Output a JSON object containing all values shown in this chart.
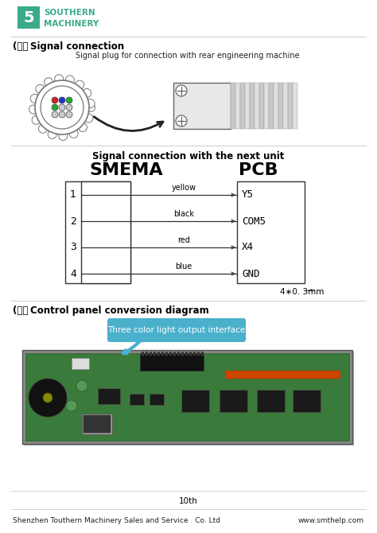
{
  "bg_color": "#ffffff",
  "logo_text1": "SOUTHERN",
  "logo_text2": "MACHINERY",
  "logo_color": "#3aaa8a",
  "section2_label": "(二）Signal connection",
  "section2_subtitle": "Signal plug for connection with rear engineering machine",
  "signal_title": "Signal connection with the next unit",
  "smema_label": "SMEMA",
  "pcb_label": "PCB",
  "pin_numbers": [
    "1",
    "2",
    "3",
    "4"
  ],
  "wire_labels": [
    "yellow",
    "black",
    "red",
    "blue"
  ],
  "pcb_pins": [
    "Y5",
    "COM5",
    "X4",
    "GND"
  ],
  "wire_note": "4∗0. 3mm",
  "section3_label": "(三）Control panel conversion diagram",
  "callout_text": "Three color light output interface",
  "callout_bg": "#4ab0cc",
  "callout_text_color": "#ffffff",
  "footer_page": "10th",
  "footer_left": "Shenzhen Touthern Machinery Sales and Service   Co. Ltd",
  "footer_right": "www.smthelp.com"
}
